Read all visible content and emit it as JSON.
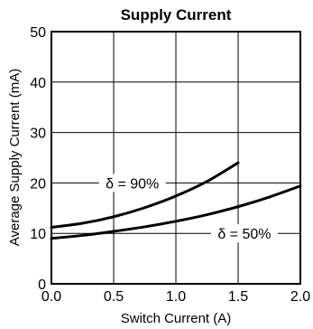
{
  "chart_data": {
    "type": "line",
    "title": "Supply Current",
    "xlabel": "Switch Current (A)",
    "ylabel": "Average Supply Current (mA)",
    "xlim": [
      0,
      2.0
    ],
    "ylim": [
      0,
      50
    ],
    "xticks": [
      0.0,
      0.5,
      1.0,
      1.5,
      2.0
    ],
    "xtick_labels": [
      "0.0",
      "0.5",
      "1.0",
      "1.5",
      "2.0"
    ],
    "yticks": [
      0,
      10,
      20,
      30,
      40,
      50
    ],
    "ytick_labels": [
      "0",
      "10",
      "20",
      "30",
      "40",
      "50"
    ],
    "grid": true,
    "legend": "none",
    "line_color": "#000000",
    "series": [
      {
        "name": "δ = 90%",
        "x": [
          0.0,
          0.25,
          0.5,
          0.75,
          1.0,
          1.25,
          1.5
        ],
        "y": [
          11.2,
          12.0,
          13.3,
          15.1,
          17.4,
          20.3,
          24.0
        ]
      },
      {
        "name": "δ = 50%",
        "x": [
          0.0,
          0.25,
          0.5,
          0.75,
          1.0,
          1.25,
          1.5,
          1.75,
          2.0
        ],
        "y": [
          9.0,
          9.6,
          10.4,
          11.3,
          12.4,
          13.7,
          15.3,
          17.2,
          19.4
        ]
      }
    ],
    "annotations": [
      {
        "text": "δ = 90%",
        "series": 0,
        "x": 0.65,
        "y": 20.0
      },
      {
        "text": "δ = 50%",
        "series": 1,
        "x": 1.55,
        "y": 10.0
      }
    ]
  }
}
